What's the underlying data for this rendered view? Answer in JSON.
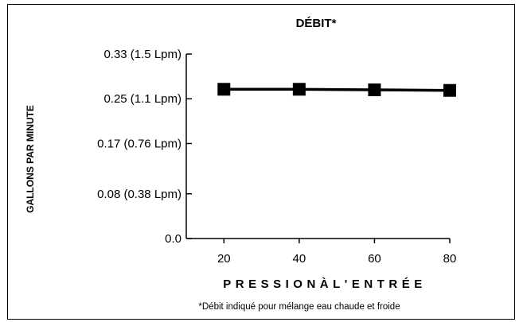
{
  "chart_data": {
    "type": "line",
    "title": "DÉBIT*",
    "xlabel": "PRESSIONÀL'ENTRÉE",
    "ylabel": "GALLONS PAR MINUTE",
    "note": "*Débit indiqué pour mélange eau chaude et froide",
    "x": [
      20,
      40,
      60,
      80
    ],
    "x_ticks": [
      "20",
      "40",
      "60",
      "80"
    ],
    "xlim": [
      10,
      80
    ],
    "y_ticks": [
      {
        "value": 0.0,
        "label": "0.0"
      },
      {
        "value": 0.08,
        "label": "0.08 (0.38 Lpm)"
      },
      {
        "value": 0.17,
        "label": "0.17 (0.76 Lpm)"
      },
      {
        "value": 0.25,
        "label": "0.25 (1.1 Lpm)"
      },
      {
        "value": 0.33,
        "label": "0.33 (1.5 Lpm)"
      }
    ],
    "ylim": [
      0,
      0.33
    ],
    "series": [
      {
        "values": [
          0.267,
          0.267,
          0.266,
          0.265
        ],
        "color": "#000000",
        "marker": "square"
      }
    ],
    "grid": false
  }
}
